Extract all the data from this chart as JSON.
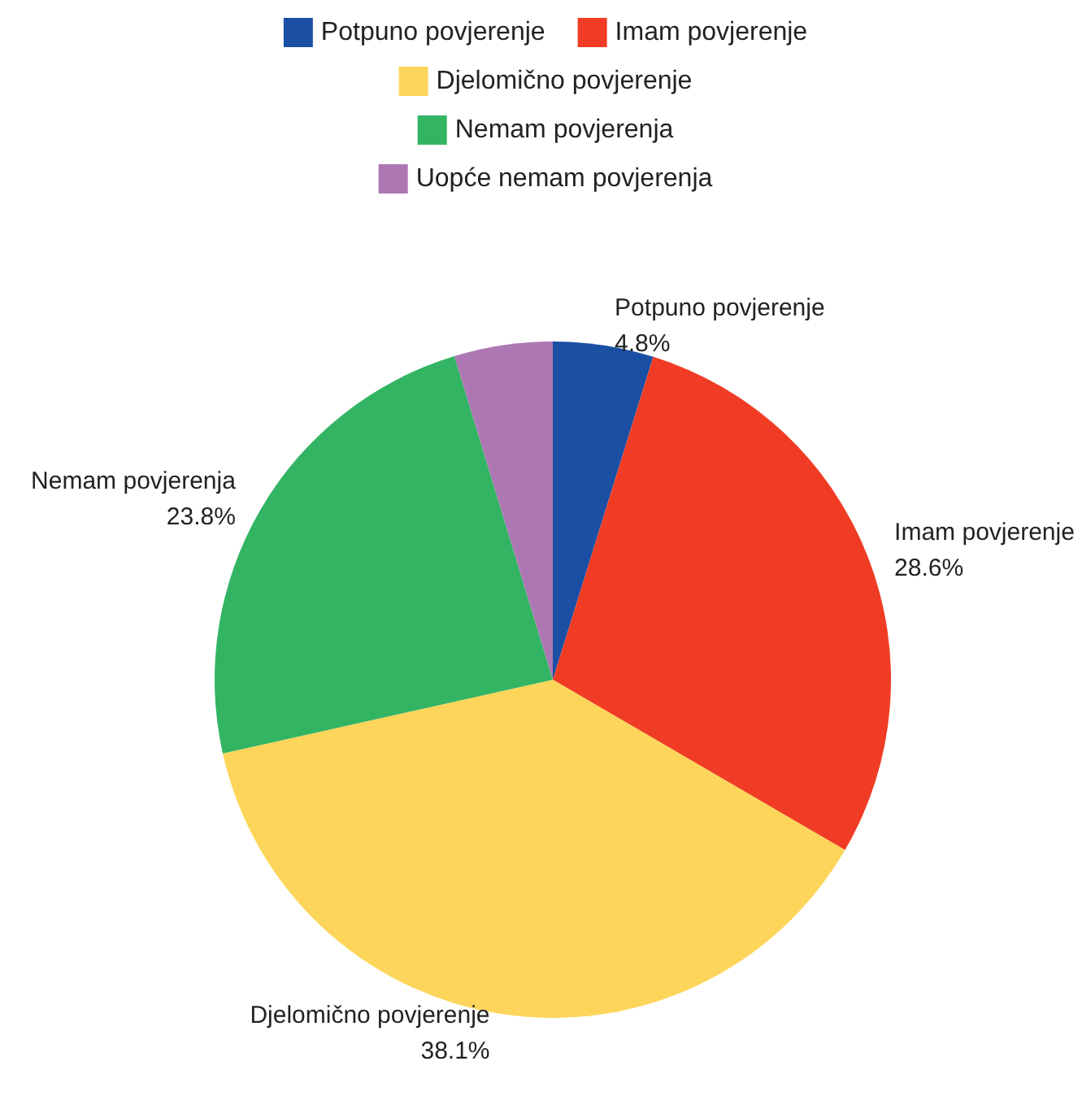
{
  "chart_data": {
    "type": "pie",
    "categories": [
      "Potpuno povjerenje",
      "Imam povjerenje",
      "Djelomično povjerenje",
      "Nemam povjerenja",
      "Uopće nemam povjerenja"
    ],
    "values": [
      4.8,
      28.6,
      38.1,
      23.8,
      4.7
    ],
    "value_labels": [
      "4.8%",
      "28.6%",
      "38.1%",
      "23.8%",
      null
    ],
    "colors": [
      "#1a4fa3",
      "#f03c24",
      "#fdd55a",
      "#33b463",
      "#ad77b4"
    ],
    "legend": "top"
  }
}
